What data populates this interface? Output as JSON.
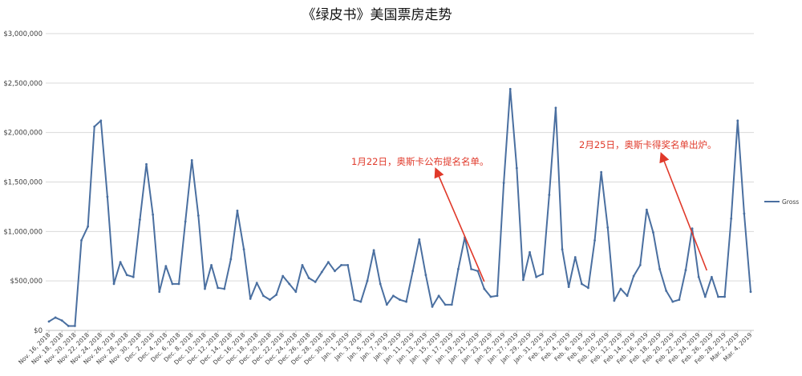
{
  "chart_data": {
    "type": "line",
    "title": "《绿皮书》美国票房走势",
    "xlabel": "",
    "ylabel": "",
    "ylim": [
      0,
      3000000
    ],
    "y_ticks": [
      "$0",
      "$500,000",
      "$1,000,000",
      "$1,500,000",
      "$2,000,000",
      "$2,500,000",
      "$3,000,000"
    ],
    "y_tick_values": [
      0,
      500000,
      1000000,
      1500000,
      2000000,
      2500000,
      3000000
    ],
    "grid": true,
    "legend_position": "right",
    "x": [
      "Nov. 16, 2018",
      "Nov. 17, 2018",
      "Nov. 18, 2018",
      "Nov. 19, 2018",
      "Nov. 20, 2018",
      "Nov. 21, 2018",
      "Nov. 22, 2018",
      "Nov. 23, 2018",
      "Nov. 24, 2018",
      "Nov. 25, 2018",
      "Nov. 26, 2018",
      "Nov. 27, 2018",
      "Nov. 28, 2018",
      "Nov. 29, 2018",
      "Nov. 30, 2018",
      "Dec. 1, 2018",
      "Dec. 2, 2018",
      "Dec. 3, 2018",
      "Dec. 4, 2018",
      "Dec. 5, 2018",
      "Dec. 6, 2018",
      "Dec. 7, 2018",
      "Dec. 8, 2018",
      "Dec. 9, 2018",
      "Dec. 10, 2018",
      "Dec. 11, 2018",
      "Dec. 12, 2018",
      "Dec. 13, 2018",
      "Dec. 14, 2018",
      "Dec. 15, 2018",
      "Dec. 16, 2018",
      "Dec. 17, 2018",
      "Dec. 18, 2018",
      "Dec. 19, 2018",
      "Dec. 20, 2018",
      "Dec. 21, 2018",
      "Dec. 22, 2018",
      "Dec. 23, 2018",
      "Dec. 24, 2018",
      "Dec. 25, 2018",
      "Dec. 26, 2018",
      "Dec. 27, 2018",
      "Dec. 28, 2018",
      "Dec. 29, 2018",
      "Dec. 30, 2018",
      "Dec. 31, 2018",
      "Jan. 1, 2019",
      "Jan. 2, 2019",
      "Jan. 3, 2019",
      "Jan. 4, 2019",
      "Jan. 5, 2019",
      "Jan. 6, 2019",
      "Jan. 7, 2019",
      "Jan. 8, 2019",
      "Jan. 9, 2019",
      "Jan. 10, 2019",
      "Jan. 11, 2019",
      "Jan. 12, 2019",
      "Jan. 13, 2019",
      "Jan. 14, 2019",
      "Jan. 15, 2019",
      "Jan. 16, 2019",
      "Jan. 17, 2019",
      "Jan. 18, 2019",
      "Jan. 19, 2019",
      "Jan. 20, 2019",
      "Jan. 21, 2019",
      "Jan. 22, 2019",
      "Jan. 23, 2019",
      "Jan. 24, 2019",
      "Jan. 25, 2019",
      "Jan. 26, 2019",
      "Jan. 27, 2019",
      "Jan. 28, 2019",
      "Jan. 29, 2019",
      "Jan. 30, 2019",
      "Jan. 31, 2019",
      "Feb. 1, 2019",
      "Feb. 2, 2019",
      "Feb. 3, 2019",
      "Feb. 4, 2019",
      "Feb. 5, 2019",
      "Feb. 6, 2019",
      "Feb. 7, 2019",
      "Feb. 8, 2019",
      "Feb. 9, 2019",
      "Feb. 10, 2019",
      "Feb. 11, 2019",
      "Feb. 12, 2019",
      "Feb. 13, 2019",
      "Feb. 14, 2019",
      "Feb. 15, 2019",
      "Feb. 16, 2019",
      "Feb. 17, 2019",
      "Feb. 18, 2019",
      "Feb. 19, 2019",
      "Feb. 20, 2019",
      "Feb. 21, 2019",
      "Feb. 22, 2019",
      "Feb. 23, 2019",
      "Feb. 24, 2019",
      "Feb. 25, 2019",
      "Feb. 26, 2019",
      "Feb. 27, 2019",
      "Feb. 28, 2019",
      "Mar. 1, 2019",
      "Mar. 2, 2019",
      "Mar. 3, 2019",
      "Mar. 4, 2019"
    ],
    "x_tick_labels": [
      "Nov. 16, 2018",
      "Nov. 18, 2018",
      "Nov. 20, 2018",
      "Nov. 22, 2018",
      "Nov. 24, 2018",
      "Nov. 26, 2018",
      "Nov. 28, 2018",
      "Nov. 30, 2018",
      "Dec. 2, 2018",
      "Dec. 4, 2018",
      "Dec. 6, 2018",
      "Dec. 8, 2018",
      "Dec. 10, 2018",
      "Dec. 12, 2018",
      "Dec. 14, 2018",
      "Dec. 16, 2018",
      "Dec. 18, 2018",
      "Dec. 20, 2018",
      "Dec. 22, 2018",
      "Dec. 24, 2018",
      "Dec. 26, 2018",
      "Dec. 28, 2018",
      "Dec. 30, 2018",
      "Jan. 1, 2019",
      "Jan. 3, 2019",
      "Jan. 5, 2019",
      "Jan. 7, 2019",
      "Jan. 9, 2019",
      "Jan. 11, 2019",
      "Jan. 13, 2019",
      "Jan. 15, 2019",
      "Jan. 17, 2019",
      "Jan. 19, 2019",
      "Jan. 21, 2019",
      "Jan. 23, 2019",
      "Jan. 25, 2019",
      "Jan. 27, 2019",
      "Jan. 29, 2019",
      "Jan. 31, 2019",
      "Feb. 2, 2019",
      "Feb. 4, 2019",
      "Feb. 6, 2019",
      "Feb. 8, 2019",
      "Feb. 10, 2019",
      "Feb. 12, 2019",
      "Feb. 14, 2019",
      "Feb. 16, 2019",
      "Feb. 18, 2019",
      "Feb. 20, 2019",
      "Feb. 22, 2019",
      "Feb. 24, 2019",
      "Feb. 26, 2019",
      "Feb. 28, 2019",
      "Mar. 2, 2019",
      "Mar. 4, 2019"
    ],
    "series": [
      {
        "name": "Gross",
        "color": "#4a6fa0",
        "values": [
          90000,
          130000,
          100000,
          45000,
          45000,
          910000,
          1050000,
          2060000,
          2120000,
          1350000,
          470000,
          690000,
          560000,
          540000,
          1120000,
          1680000,
          1170000,
          390000,
          650000,
          470000,
          470000,
          1100000,
          1720000,
          1160000,
          420000,
          660000,
          430000,
          420000,
          720000,
          1210000,
          820000,
          320000,
          480000,
          350000,
          310000,
          360000,
          550000,
          470000,
          390000,
          660000,
          530000,
          490000,
          590000,
          690000,
          600000,
          660000,
          660000,
          310000,
          290000,
          500000,
          810000,
          470000,
          260000,
          350000,
          310000,
          290000,
          600000,
          920000,
          560000,
          240000,
          350000,
          260000,
          260000,
          620000,
          940000,
          620000,
          600000,
          420000,
          340000,
          350000,
          1490000,
          2440000,
          1640000,
          510000,
          790000,
          540000,
          570000,
          1370000,
          2250000,
          820000,
          440000,
          740000,
          470000,
          430000,
          910000,
          1600000,
          1040000,
          300000,
          420000,
          350000,
          550000,
          660000,
          1220000,
          990000,
          620000,
          400000,
          290000,
          310000,
          610000,
          1030000,
          540000,
          340000,
          540000,
          340000,
          340000,
          1130000,
          2120000,
          1180000,
          390000
        ]
      }
    ],
    "annotations": [
      {
        "text": "1月22日，奥斯卡公布提名名单。",
        "arrow_color": "#e0392a"
      },
      {
        "text": "2月25日，奥斯卡得奖名单出炉。",
        "arrow_color": "#e0392a"
      }
    ],
    "colors": {
      "line": "#4a6fa0",
      "grid": "#d9d9d9",
      "annotation": "#e0392a"
    }
  }
}
